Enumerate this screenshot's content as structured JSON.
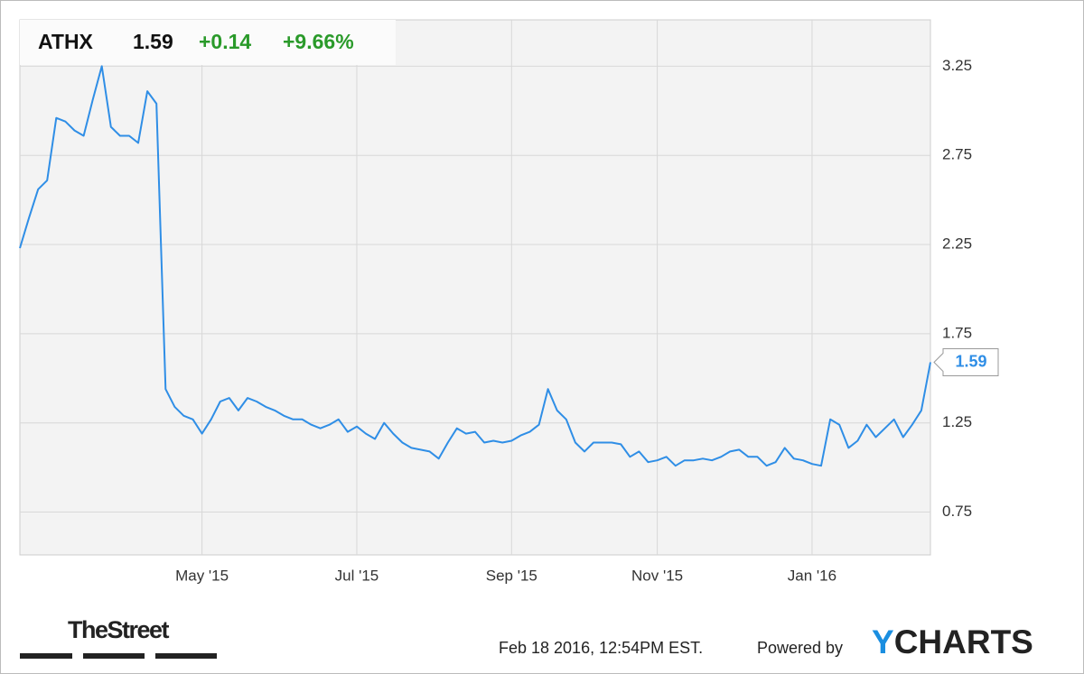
{
  "chart_data": {
    "type": "line",
    "header": {
      "ticker": "ATHX",
      "price": "1.59",
      "change": "+0.14",
      "change_pct": "+9.66%"
    },
    "categories": [
      null,
      null,
      null,
      null,
      null,
      null,
      null,
      null,
      null,
      null,
      null,
      null,
      null,
      null,
      null,
      null,
      null,
      null,
      null,
      null,
      "May '15",
      null,
      null,
      null,
      null,
      null,
      null,
      null,
      null,
      null,
      null,
      null,
      null,
      null,
      null,
      null,
      null,
      "Jul '15",
      null,
      null,
      null,
      null,
      null,
      null,
      null,
      null,
      null,
      null,
      null,
      null,
      null,
      null,
      null,
      null,
      "Sep '15",
      null,
      null,
      null,
      null,
      null,
      null,
      null,
      null,
      null,
      null,
      null,
      null,
      null,
      null,
      null,
      "Nov '15",
      null,
      null,
      null,
      null,
      null,
      null,
      null,
      null,
      null,
      null,
      null,
      null,
      null,
      null,
      null,
      null,
      "Jan '16",
      null,
      null,
      null,
      null,
      null,
      null,
      null,
      null,
      null,
      null,
      null,
      null,
      null
    ],
    "series": [
      {
        "color": "#2f8ee6",
        "values": [
          2.23,
          2.4,
          2.56,
          2.61,
          2.96,
          2.94,
          2.89,
          2.86,
          3.06,
          3.25,
          2.91,
          2.86,
          2.86,
          2.82,
          3.11,
          3.04,
          1.44,
          1.34,
          1.29,
          1.27,
          1.19,
          1.27,
          1.37,
          1.39,
          1.32,
          1.39,
          1.37,
          1.34,
          1.32,
          1.29,
          1.27,
          1.27,
          1.24,
          1.22,
          1.24,
          1.27,
          1.2,
          1.23,
          1.19,
          1.16,
          1.25,
          1.19,
          1.14,
          1.11,
          1.1,
          1.09,
          1.05,
          1.14,
          1.22,
          1.19,
          1.2,
          1.14,
          1.15,
          1.14,
          1.15,
          1.18,
          1.2,
          1.24,
          1.44,
          1.32,
          1.27,
          1.14,
          1.09,
          1.14,
          1.14,
          1.14,
          1.13,
          1.06,
          1.09,
          1.03,
          1.04,
          1.06,
          1.01,
          1.04,
          1.04,
          1.05,
          1.04,
          1.06,
          1.09,
          1.1,
          1.06,
          1.06,
          1.01,
          1.03,
          1.11,
          1.05,
          1.04,
          1.02,
          1.01,
          1.27,
          1.24,
          1.11,
          1.15,
          1.24,
          1.17,
          1.22,
          1.27,
          1.17,
          1.24,
          1.32,
          1.59
        ]
      }
    ],
    "ylim": [
      0.51,
      3.51
    ],
    "yticks": [
      0.75,
      1.25,
      1.75,
      2.25,
      2.75,
      3.25
    ],
    "grid": true
  },
  "footer": {
    "source_logo": "TheStreet",
    "timestamp": "Feb 18 2016, 12:54PM EST.",
    "powered": "Powered by",
    "brand_y": "Y",
    "brand_rest": "CHARTS"
  }
}
